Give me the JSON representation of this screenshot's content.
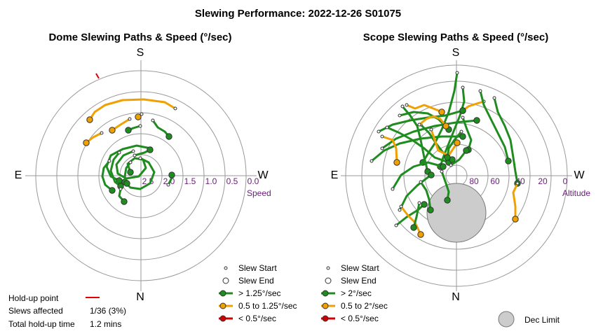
{
  "title": "Slewing Performance: 2022-12-26 S01075",
  "chart_data": [
    {
      "type": "polar-paths",
      "title": "Dome Slewing Paths & Speed (°/sec)",
      "directions": {
        "top": "S",
        "bottom": "N",
        "left": "E",
        "right": "W"
      },
      "radial_axis": {
        "label": "Speed",
        "ticks": [
          "2.5",
          "2.0",
          "1.5",
          "1.0",
          "0.5",
          "0.0"
        ]
      },
      "legend": [
        {
          "label": "Slew Start",
          "kind": "start"
        },
        {
          "label": "Slew End",
          "kind": "end"
        },
        {
          "label": "> 1.25°/sec",
          "kind": "fast",
          "color": "#1e8c1e"
        },
        {
          "label": "0.5 to 1.25°/sec",
          "kind": "medium",
          "color": "#f0a000"
        },
        {
          "label": "< 0.5°/sec",
          "kind": "slow",
          "color": "#d00000"
        }
      ]
    },
    {
      "type": "polar-paths",
      "title": "Scope Slewing Paths & Speed (°/sec)",
      "directions": {
        "top": "S",
        "bottom": "N",
        "left": "E",
        "right": "W"
      },
      "radial_axis": {
        "label": "Altitude",
        "ticks": [
          "80",
          "60",
          "40",
          "20",
          "0"
        ]
      },
      "legend": [
        {
          "label": "Slew Start",
          "kind": "start"
        },
        {
          "label": "Slew End",
          "kind": "end"
        },
        {
          "label": "> 2°/sec",
          "kind": "fast",
          "color": "#1e8c1e"
        },
        {
          "label": "0.5 to 2°/sec",
          "kind": "medium",
          "color": "#f0a000"
        },
        {
          "label": "< 0.5°/sec",
          "kind": "slow",
          "color": "#d00000"
        }
      ],
      "extra_legend": {
        "label": "Dec Limit",
        "color": "#cccccc"
      }
    }
  ],
  "holdup": {
    "point_label": "Hold-up point",
    "slews_label": "Slews affected",
    "slews_value": "1/36 (3%)",
    "total_label": "Total hold-up time",
    "total_value": "1.2 mins"
  }
}
